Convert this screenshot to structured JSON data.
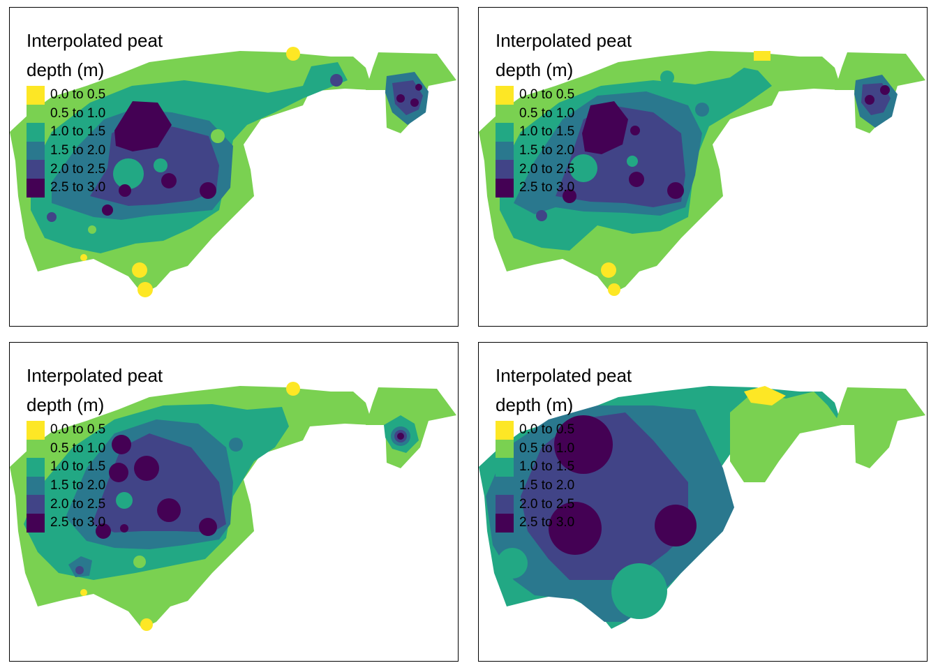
{
  "legend": {
    "title": "Interpolated peat depth (m)",
    "classes": [
      {
        "label": "0.0 to 0.5",
        "color": "#fde725"
      },
      {
        "label": "0.5 to 1.0",
        "color": "#7ad151"
      },
      {
        "label": "1.0 to 1.5",
        "color": "#22a884"
      },
      {
        "label": "1.5 to 2.0",
        "color": "#2a788e"
      },
      {
        "label": "2.0 to 2.5",
        "color": "#414487"
      },
      {
        "label": "2.5 to 3.0",
        "color": "#440154"
      }
    ]
  },
  "panels": [
    {
      "legend_title": "Interpolated peat depth (m)"
    },
    {
      "legend_title": "Interpolated peat depth (m)"
    },
    {
      "legend_title": "Interpolated peat depth (m)"
    },
    {
      "legend_title": "Interpolated peat depth (m)"
    }
  ]
}
